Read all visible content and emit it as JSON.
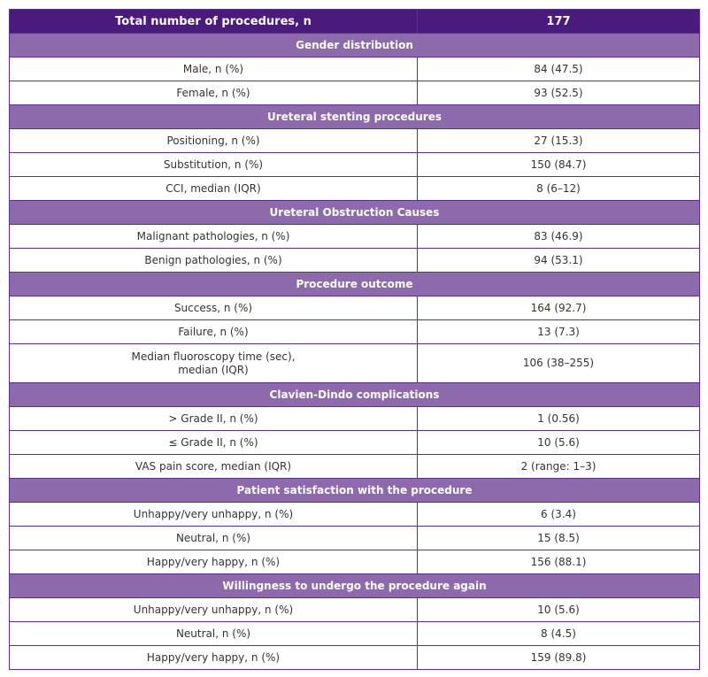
{
  "table": {
    "header": [
      "Total number of procedures, n",
      "177"
    ],
    "sections": [
      {
        "title": "Gender distribution",
        "rows": [
          [
            "Male, n (%)",
            "84 (47.5)"
          ],
          [
            "Female, n (%)",
            "93 (52.5)"
          ]
        ]
      },
      {
        "title": "Ureteral stenting procedures",
        "rows": [
          [
            "Positioning, n (%)",
            "27 (15.3)"
          ],
          [
            "Substitution, n (%)",
            "150 (84.7)"
          ],
          [
            "CCI, median (IQR)",
            "8 (6–12)"
          ]
        ]
      },
      {
        "title": "Ureteral Obstruction Causes",
        "rows": [
          [
            "Malignant pathologies, n (%)",
            "83 (46.9)"
          ],
          [
            "Benign pathologies, n (%)",
            "94 (53.1)"
          ]
        ]
      },
      {
        "title": "Procedure outcome",
        "rows": [
          [
            "Success, n (%)",
            "164 (92.7)"
          ],
          [
            "Failure, n (%)",
            "13 (7.3)"
          ],
          [
            "Median fluoroscopy time (sec),\nmedian (IQR)",
            "106 (38–255)"
          ]
        ]
      },
      {
        "title": "Clavien-Dindo complications",
        "rows": [
          [
            "> Grade II, n (%)",
            "1 (0.56)"
          ],
          [
            "≤ Grade II, n (%)",
            "10 (5.6)"
          ],
          [
            "VAS pain score, median (IQR)",
            "2 (range: 1–3)"
          ]
        ]
      },
      {
        "title": "Patient satisfaction with the procedure",
        "rows": [
          [
            "Unhappy/very unhappy, n (%)",
            "6 (3.4)"
          ],
          [
            "Neutral, n (%)",
            "15 (8.5)"
          ],
          [
            "Happy/very happy, n (%)",
            "156 (88.1)"
          ]
        ]
      },
      {
        "title": "Willingness to undergo the procedure again",
        "rows": [
          [
            "Unhappy/very unhappy, n (%)",
            "10 (5.6)"
          ],
          [
            "Neutral, n (%)",
            "8 (4.5)"
          ],
          [
            "Happy/very happy, n (%)",
            "159 (89.8)"
          ]
        ]
      }
    ]
  }
}
